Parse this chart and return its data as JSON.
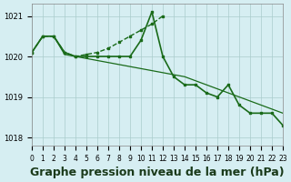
{
  "bg_color": "#d6eef2",
  "grid_color": "#aacccc",
  "line_color": "#1a6b1a",
  "marker_color": "#1a6b1a",
  "xlabel": "Graphe pression niveau de la mer (hPa)",
  "xlabel_fontsize": 9,
  "xlim": [
    0,
    23
  ],
  "ylim": [
    1017.8,
    1021.3
  ],
  "yticks": [
    1018,
    1019,
    1020,
    1021
  ],
  "xticks": [
    0,
    1,
    2,
    3,
    4,
    5,
    6,
    7,
    8,
    9,
    10,
    11,
    12,
    13,
    14,
    15,
    16,
    17,
    18,
    19,
    20,
    21,
    22,
    23
  ],
  "series": [
    {
      "x": [
        0,
        1,
        2,
        3,
        4,
        5,
        6,
        7,
        8,
        9,
        10,
        11,
        12,
        13,
        14,
        15,
        16,
        17,
        18,
        19,
        20,
        21,
        22,
        23
      ],
      "y": [
        1020.1,
        1020.5,
        1020.5,
        1020.1,
        1020.0,
        1020.0,
        1020.0,
        1020.0,
        1020.0,
        1020.0,
        1020.4,
        1021.1,
        1020.0,
        1019.5,
        1019.3,
        1019.3,
        1019.1,
        1019.0,
        1019.3,
        1018.8,
        1018.6,
        1018.6,
        1018.6,
        1018.3
      ],
      "style": "-",
      "marker": "s",
      "markersize": 2,
      "linewidth": 1.2
    },
    {
      "x": [
        0,
        1,
        2,
        3,
        4,
        5,
        6,
        7,
        8,
        9,
        10,
        11,
        12
      ],
      "y": [
        1020.1,
        1020.5,
        1020.5,
        1020.1,
        1020.0,
        1020.05,
        1020.1,
        1020.2,
        1020.35,
        1020.5,
        1020.65,
        1020.8,
        1021.0
      ],
      "style": "--",
      "marker": "s",
      "markersize": 2,
      "linewidth": 1.0
    },
    {
      "x": [
        0,
        1,
        2,
        3,
        4,
        5,
        6,
        7,
        8,
        9,
        10,
        11,
        12,
        13,
        14,
        15,
        16,
        17,
        18,
        19,
        20,
        21,
        22,
        23
      ],
      "y": [
        1020.1,
        1020.5,
        1020.5,
        1020.05,
        1020.0,
        1019.95,
        1019.9,
        1019.85,
        1019.8,
        1019.75,
        1019.7,
        1019.65,
        1019.6,
        1019.55,
        1019.5,
        1019.4,
        1019.3,
        1019.2,
        1019.1,
        1019.0,
        1018.9,
        1018.8,
        1018.7,
        1018.6
      ],
      "style": "-",
      "marker": null,
      "markersize": 0,
      "linewidth": 0.9
    }
  ]
}
